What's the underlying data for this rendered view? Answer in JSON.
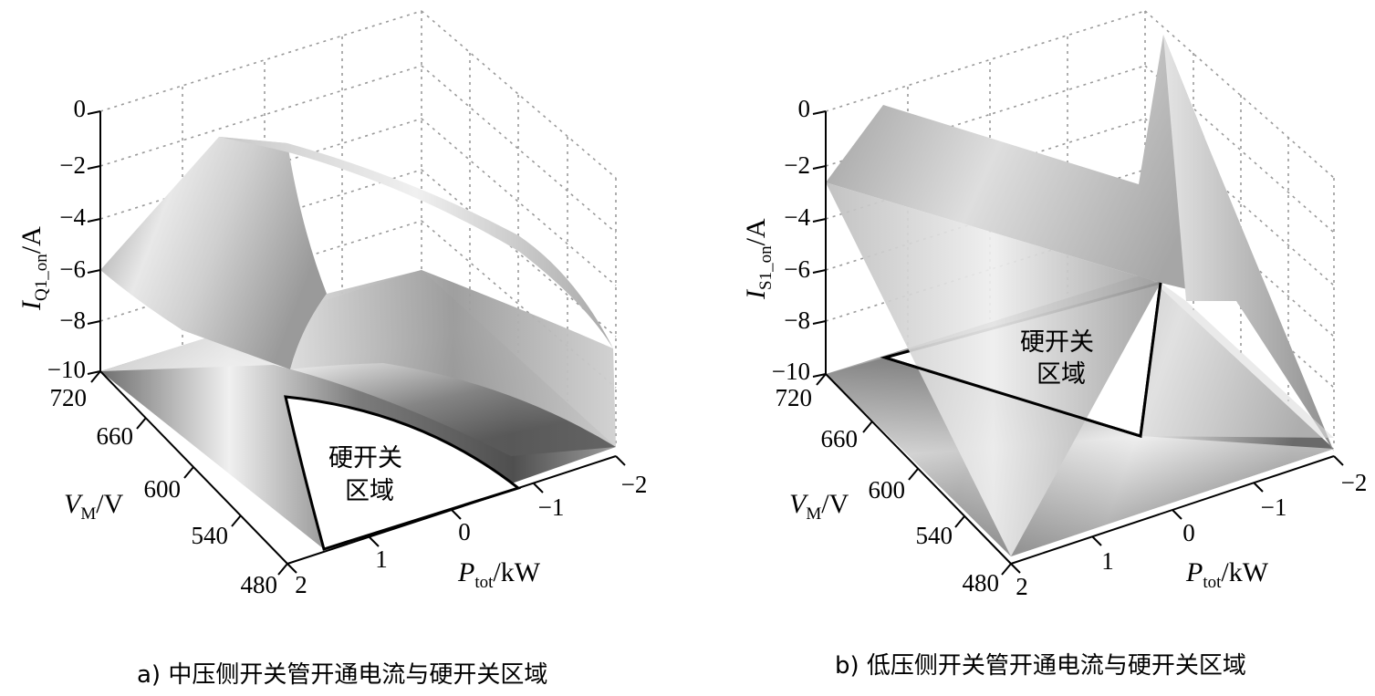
{
  "chart_data": [
    {
      "type": "surface3d",
      "caption": "a) 中压侧开关管开通电流与硬开关区域",
      "zlabel": {
        "var": "I",
        "sub": "Q1_on",
        "unit": "/A"
      },
      "ylabel": {
        "var": "V",
        "sub": "M",
        "unit": "/V"
      },
      "xlabel": {
        "var": "P",
        "sub": "tot",
        "unit": "/kW"
      },
      "z_ticks": [
        "0",
        "−2",
        "−4",
        "−6",
        "−8",
        "−10"
      ],
      "y_ticks": [
        "720",
        "660",
        "600",
        "540",
        "480"
      ],
      "x_ticks": [
        "−2",
        "−1",
        "0",
        "1",
        "2"
      ],
      "zlim": [
        -10,
        0
      ],
      "ylim": [
        480,
        720
      ],
      "xlim": [
        -2,
        2
      ],
      "annotation": [
        "硬开关",
        "区域"
      ],
      "grid": true
    },
    {
      "type": "surface3d",
      "caption": "b) 低压侧开关管开通电流与硬开关区域",
      "zlabel": {
        "var": "I",
        "sub": "S1_on",
        "unit": "/A"
      },
      "ylabel": {
        "var": "V",
        "sub": "M",
        "unit": "/V"
      },
      "xlabel": {
        "var": "P",
        "sub": "tot",
        "unit": "/kW"
      },
      "z_ticks": [
        "0",
        "−2",
        "−4",
        "−6",
        "−8",
        "−10"
      ],
      "y_ticks": [
        "720",
        "660",
        "600",
        "540",
        "480"
      ],
      "x_ticks": [
        "−2",
        "−1",
        "0",
        "1",
        "2"
      ],
      "zlim": [
        -10,
        0
      ],
      "ylim": [
        480,
        720
      ],
      "xlim": [
        -2,
        2
      ],
      "annotation": [
        "硬开关",
        "区域"
      ],
      "grid": true
    }
  ]
}
